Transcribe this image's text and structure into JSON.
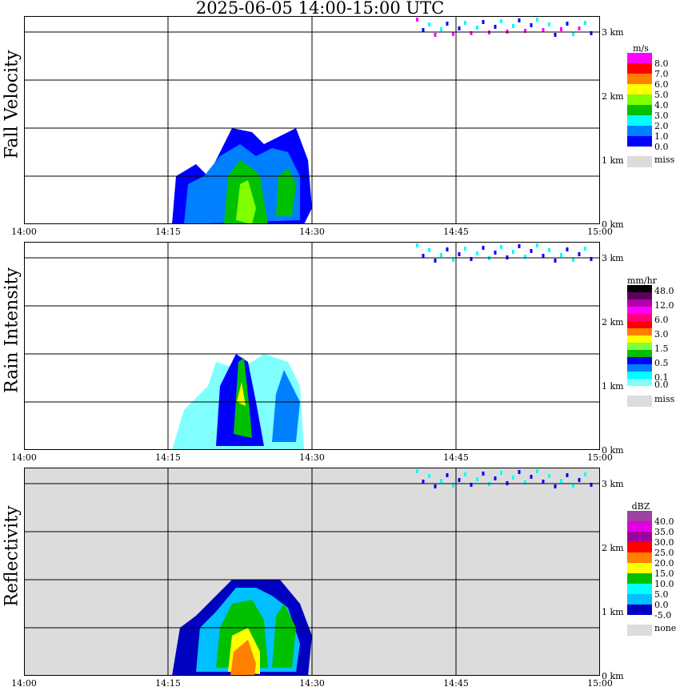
{
  "title": "2025-06-05  14:00-15:00 UTC",
  "chart_data": [
    {
      "type": "heatmap",
      "ylabel": "Fall Velocity",
      "unit": "m/s",
      "background": "#ffffff",
      "legend_labels": [
        "8.0",
        "7.0",
        "6.0",
        "5.0",
        "4.0",
        "3.0",
        "2.0",
        "1.0",
        "0.0"
      ],
      "legend_colors": [
        "#ff00ff",
        "#ff0000",
        "#ff8000",
        "#ffff00",
        "#80ff00",
        "#00c000",
        "#00ffff",
        "#0080ff",
        "#0000ff"
      ],
      "missing_label": "miss"
    },
    {
      "type": "heatmap",
      "ylabel": "Rain Intensity",
      "unit": "mm/hr",
      "background": "#ffffff",
      "legend_labels": [
        "48.0",
        "12.0",
        "6.0",
        "3.0",
        "1.5",
        "0.5",
        "0.1",
        "0.0"
      ],
      "legend_colors": [
        "#000000",
        "#600060",
        "#b000b0",
        "#ff00ff",
        "#ff0080",
        "#ff0000",
        "#ff8000",
        "#ffff00",
        "#80ff40",
        "#00c000",
        "#0000ff",
        "#0080ff",
        "#00ffff",
        "#80ffff"
      ],
      "missing_label": "miss"
    },
    {
      "type": "heatmap",
      "ylabel": "Reflectivity",
      "unit": "dBZ",
      "background": "#dcdcdc",
      "legend_labels": [
        "40.0",
        "35.0",
        "30.0",
        "25.0",
        "20.0",
        "15.0",
        "10.0",
        "5.0",
        "0.0",
        "-5.0"
      ],
      "legend_colors": [
        "#a040a0",
        "#e000e0",
        "#a000a0",
        "#ff0000",
        "#ff8000",
        "#ffff00",
        "#00c000",
        "#00ffff",
        "#00c0ff",
        "#0000c0"
      ],
      "missing_label": "none"
    }
  ],
  "x_ticks": [
    "14:00",
    "14:15",
    "14:30",
    "14:45",
    "15:00"
  ],
  "y_ticks": [
    "3 km",
    "2 km",
    "1 km",
    "0 km"
  ]
}
